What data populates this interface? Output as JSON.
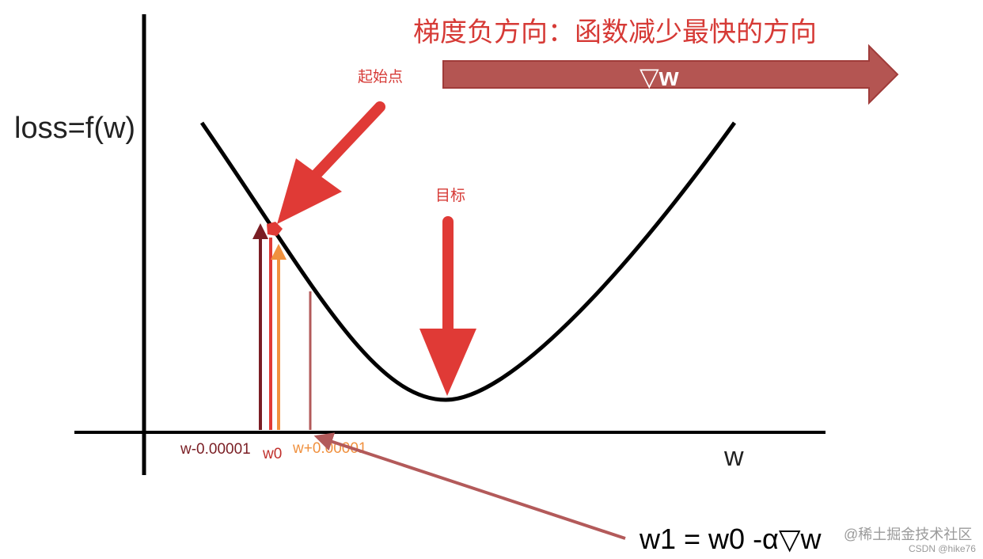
{
  "title_text": "梯度负方向：函数减少最快的方向",
  "gradient_label": "▽w",
  "y_axis_label": "loss=f(w)",
  "x_axis_label": "w",
  "start_point_label": "起始点",
  "target_label": "目标",
  "tick_labels": {
    "left": "w-0.00001",
    "center": "w0",
    "right": "w+0.00001"
  },
  "update_formula": "w1 = w0 -α▽w",
  "watermark": "@稀土掘金技术社区",
  "credit": "CSDN @hike76",
  "colors": {
    "curve": "#000000",
    "axes": "#000000",
    "red_arrow": "#e03a36",
    "title_red": "#d63a36",
    "banner_fill": "#b45552",
    "dark_red": "#7a1e24",
    "orange": "#f0913f",
    "mauve": "#b35a5a",
    "watermark": "#9a9a9a"
  }
}
